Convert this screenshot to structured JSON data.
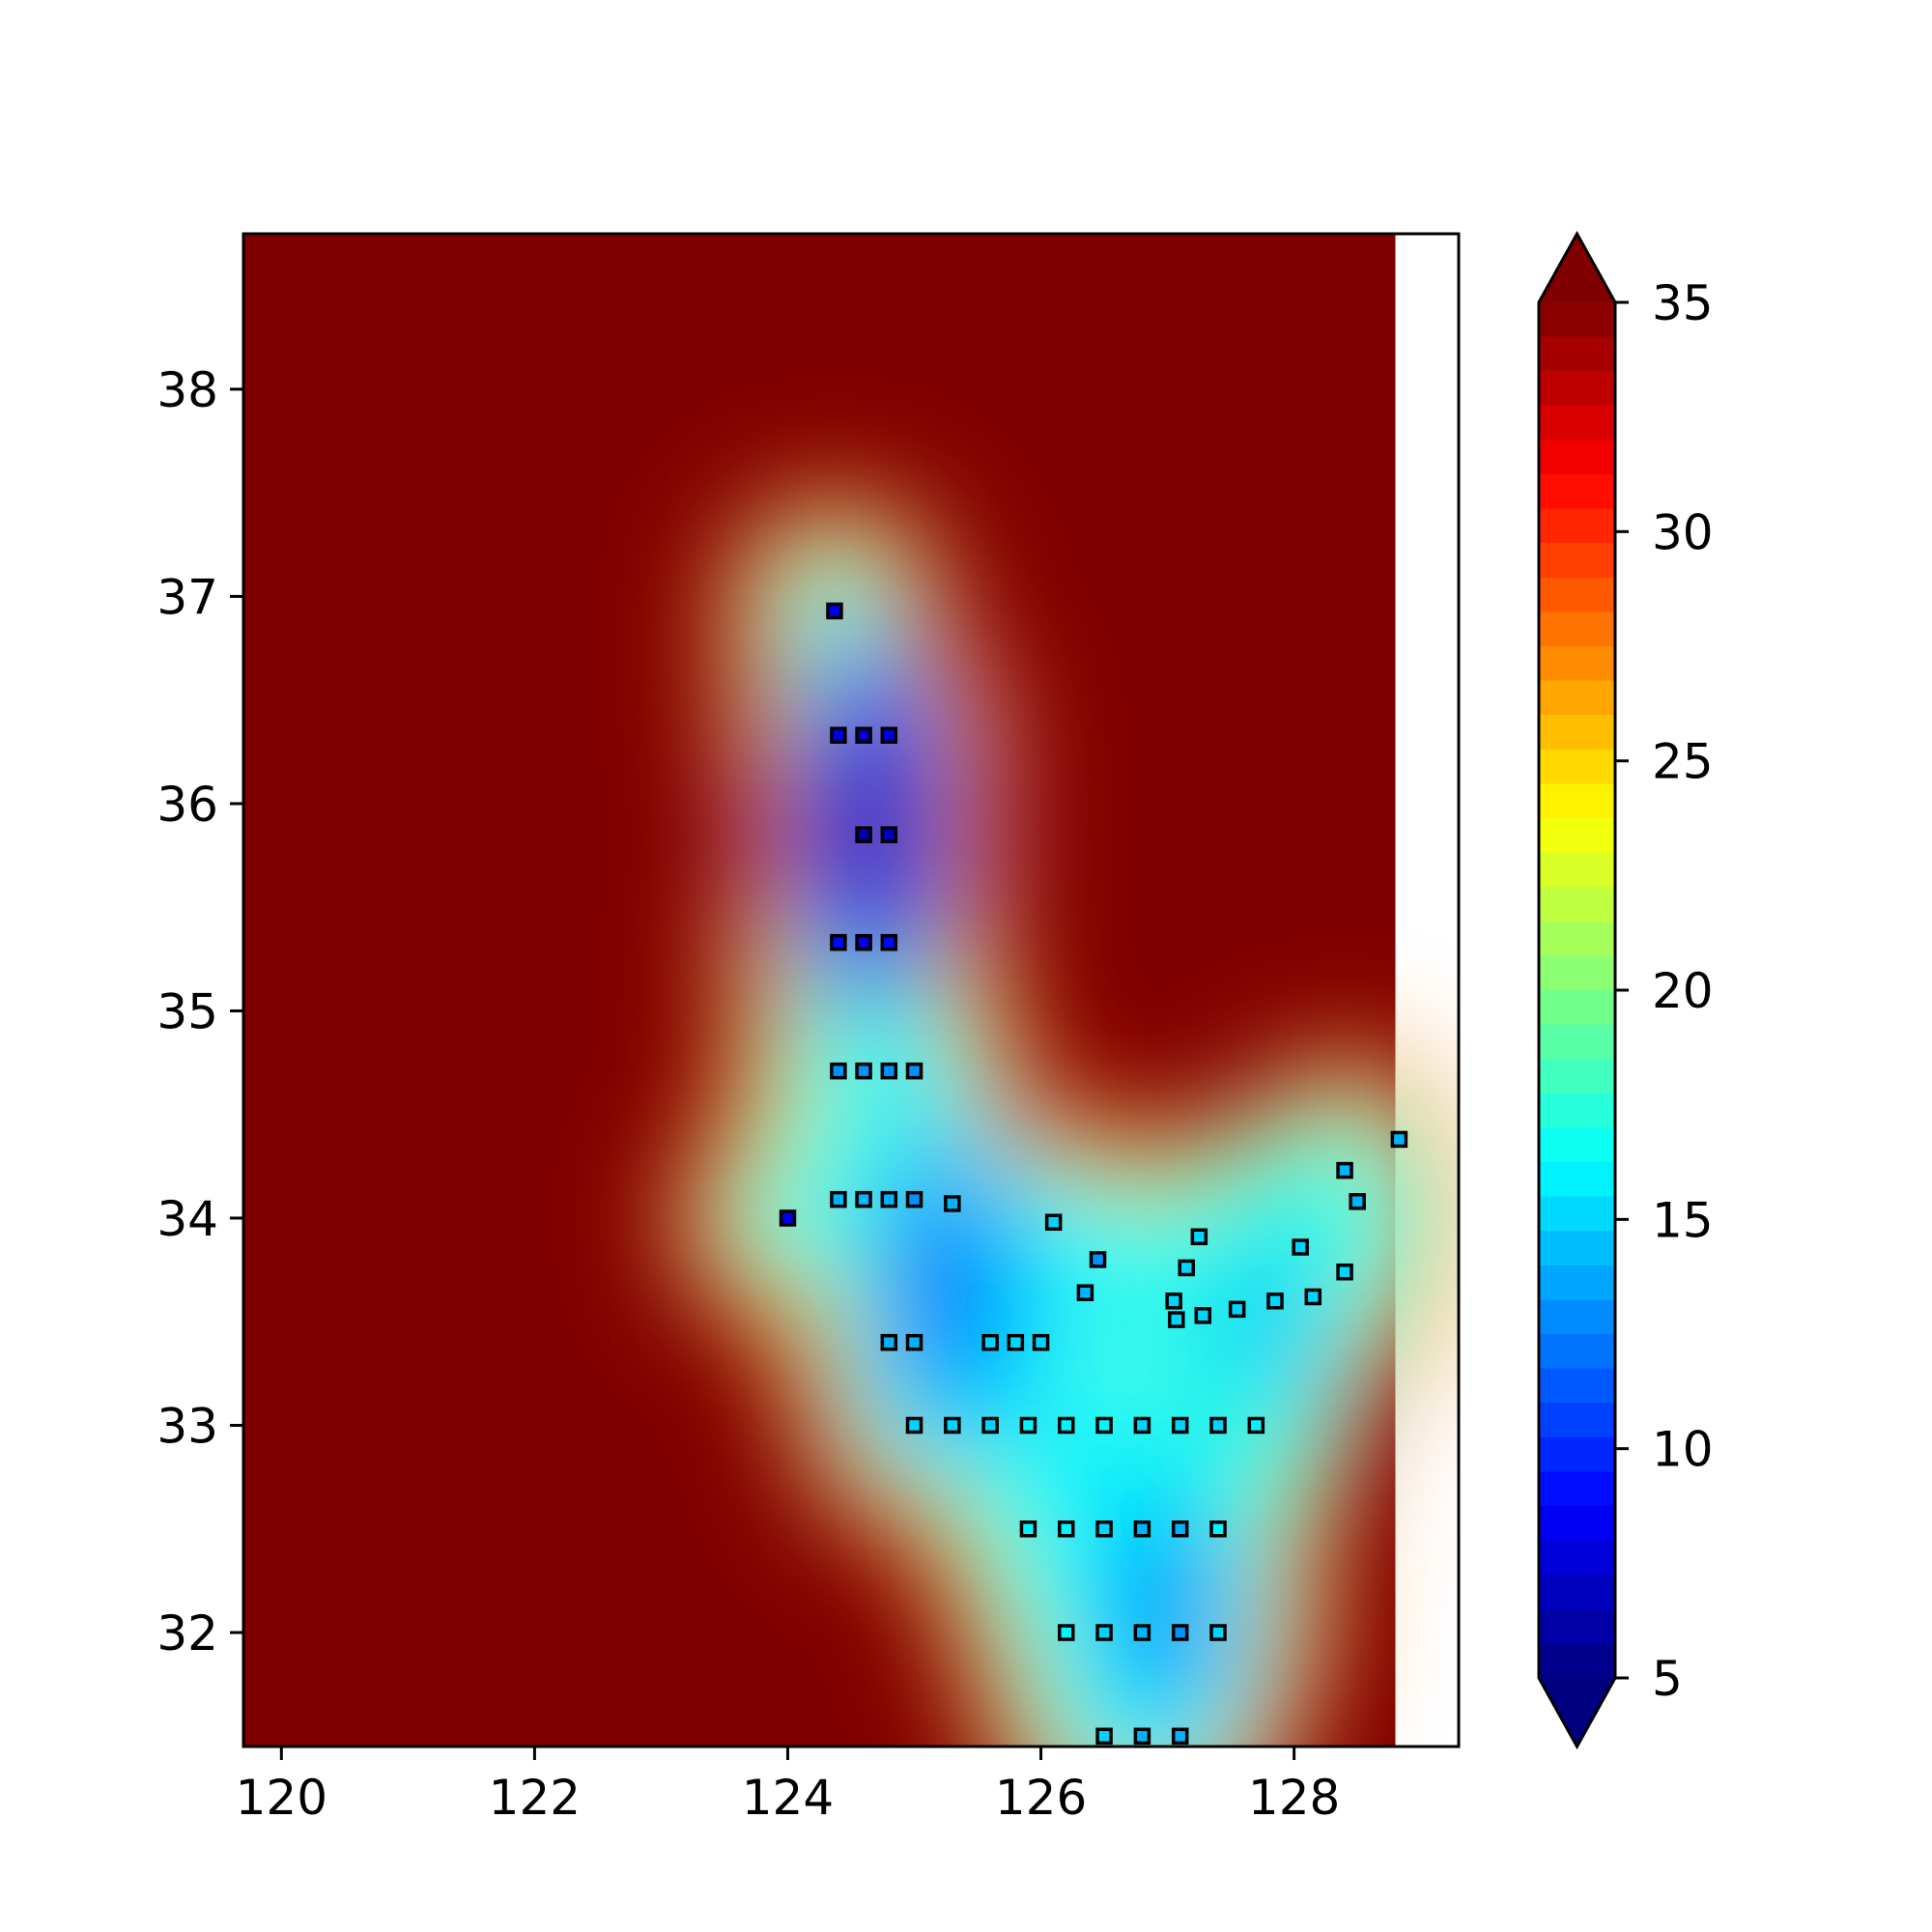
{
  "chart_data": {
    "type": "heatmap",
    "subtype": "filled contour (interpolated field) with station markers",
    "title": "",
    "xlabel": "",
    "ylabel": "",
    "xlim": [
      119.7,
      129.3
    ],
    "ylim": [
      31.45,
      38.75
    ],
    "x_ticks": [
      "120",
      "122",
      "124",
      "126",
      "128"
    ],
    "x_tick_values": [
      120,
      122,
      124,
      126,
      128
    ],
    "y_ticks": [
      "32",
      "33",
      "34",
      "35",
      "36",
      "37",
      "38"
    ],
    "y_tick_values": [
      32,
      33,
      34,
      35,
      36,
      37,
      38
    ],
    "field_x_max": 128.8,
    "colormap": "jet",
    "colorbar": {
      "min": 5,
      "max": 35,
      "levels": 40,
      "extend": "both",
      "ticks": [
        "5",
        "10",
        "15",
        "20",
        "25",
        "30",
        "35"
      ],
      "tick_values": [
        5,
        10,
        15,
        20,
        25,
        30,
        35
      ]
    },
    "background_value": 35,
    "minima": [
      {
        "x": 124.65,
        "y": 35.9,
        "value": 6
      },
      {
        "x": 125.25,
        "y": 33.65,
        "value": 11
      },
      {
        "x": 127.0,
        "y": 32.1,
        "value": 12
      },
      {
        "x": 127.8,
        "y": 33.5,
        "value": 14
      }
    ],
    "stations": [
      {
        "lon": 124.37,
        "lat": 36.93,
        "value": 8
      },
      {
        "lon": 124.4,
        "lat": 36.33,
        "value": 8
      },
      {
        "lon": 124.6,
        "lat": 36.33,
        "value": 7
      },
      {
        "lon": 124.8,
        "lat": 36.33,
        "value": 8
      },
      {
        "lon": 124.6,
        "lat": 35.85,
        "value": 6
      },
      {
        "lon": 124.8,
        "lat": 35.85,
        "value": 7
      },
      {
        "lon": 124.4,
        "lat": 35.33,
        "value": 9
      },
      {
        "lon": 124.6,
        "lat": 35.33,
        "value": 8
      },
      {
        "lon": 124.8,
        "lat": 35.33,
        "value": 9
      },
      {
        "lon": 124.4,
        "lat": 34.71,
        "value": 13
      },
      {
        "lon": 124.6,
        "lat": 34.71,
        "value": 13
      },
      {
        "lon": 124.8,
        "lat": 34.71,
        "value": 13
      },
      {
        "lon": 125.0,
        "lat": 34.71,
        "value": 13
      },
      {
        "lon": 124.0,
        "lat": 34.0,
        "value": 8
      },
      {
        "lon": 124.4,
        "lat": 34.09,
        "value": 14
      },
      {
        "lon": 124.6,
        "lat": 34.09,
        "value": 14
      },
      {
        "lon": 124.8,
        "lat": 34.09,
        "value": 14
      },
      {
        "lon": 125.0,
        "lat": 34.09,
        "value": 13
      },
      {
        "lon": 125.3,
        "lat": 34.07,
        "value": 14
      },
      {
        "lon": 126.1,
        "lat": 33.98,
        "value": 15
      },
      {
        "lon": 126.45,
        "lat": 33.8,
        "value": 13
      },
      {
        "lon": 126.35,
        "lat": 33.64,
        "value": 14
      },
      {
        "lon": 127.25,
        "lat": 33.91,
        "value": 15
      },
      {
        "lon": 127.15,
        "lat": 33.76,
        "value": 15
      },
      {
        "lon": 127.05,
        "lat": 33.6,
        "value": 15
      },
      {
        "lon": 127.07,
        "lat": 33.51,
        "value": 15
      },
      {
        "lon": 127.28,
        "lat": 33.53,
        "value": 15
      },
      {
        "lon": 127.55,
        "lat": 33.56,
        "value": 15
      },
      {
        "lon": 127.85,
        "lat": 33.6,
        "value": 15
      },
      {
        "lon": 128.05,
        "lat": 33.86,
        "value": 15
      },
      {
        "lon": 128.15,
        "lat": 33.62,
        "value": 15
      },
      {
        "lon": 128.4,
        "lat": 33.74,
        "value": 15
      },
      {
        "lon": 128.4,
        "lat": 34.23,
        "value": 14
      },
      {
        "lon": 128.5,
        "lat": 34.08,
        "value": 14
      },
      {
        "lon": 128.83,
        "lat": 34.38,
        "value": 14
      },
      {
        "lon": 124.8,
        "lat": 33.4,
        "value": 14
      },
      {
        "lon": 125.0,
        "lat": 33.4,
        "value": 14
      },
      {
        "lon": 125.6,
        "lat": 33.4,
        "value": 15
      },
      {
        "lon": 125.8,
        "lat": 33.4,
        "value": 15
      },
      {
        "lon": 126.0,
        "lat": 33.4,
        "value": 15
      },
      {
        "lon": 125.0,
        "lat": 33.0,
        "value": 15
      },
      {
        "lon": 125.3,
        "lat": 33.0,
        "value": 15
      },
      {
        "lon": 125.6,
        "lat": 33.0,
        "value": 15
      },
      {
        "lon": 125.9,
        "lat": 33.0,
        "value": 16
      },
      {
        "lon": 126.2,
        "lat": 33.0,
        "value": 16
      },
      {
        "lon": 126.5,
        "lat": 33.0,
        "value": 16
      },
      {
        "lon": 126.8,
        "lat": 33.0,
        "value": 15
      },
      {
        "lon": 127.1,
        "lat": 33.0,
        "value": 15
      },
      {
        "lon": 127.4,
        "lat": 33.0,
        "value": 15
      },
      {
        "lon": 127.7,
        "lat": 33.0,
        "value": 16
      },
      {
        "lon": 125.9,
        "lat": 32.5,
        "value": 16
      },
      {
        "lon": 126.2,
        "lat": 32.5,
        "value": 16
      },
      {
        "lon": 126.5,
        "lat": 32.5,
        "value": 15
      },
      {
        "lon": 126.8,
        "lat": 32.5,
        "value": 14
      },
      {
        "lon": 127.1,
        "lat": 32.5,
        "value": 14
      },
      {
        "lon": 127.4,
        "lat": 32.5,
        "value": 16
      },
      {
        "lon": 126.2,
        "lat": 32.0,
        "value": 16
      },
      {
        "lon": 126.5,
        "lat": 32.0,
        "value": 15
      },
      {
        "lon": 126.8,
        "lat": 32.0,
        "value": 14
      },
      {
        "lon": 127.1,
        "lat": 32.0,
        "value": 13
      },
      {
        "lon": 127.4,
        "lat": 32.0,
        "value": 15
      },
      {
        "lon": 126.5,
        "lat": 31.5,
        "value": 15
      },
      {
        "lon": 126.8,
        "lat": 31.5,
        "value": 14
      },
      {
        "lon": 127.1,
        "lat": 31.5,
        "value": 14
      }
    ]
  }
}
